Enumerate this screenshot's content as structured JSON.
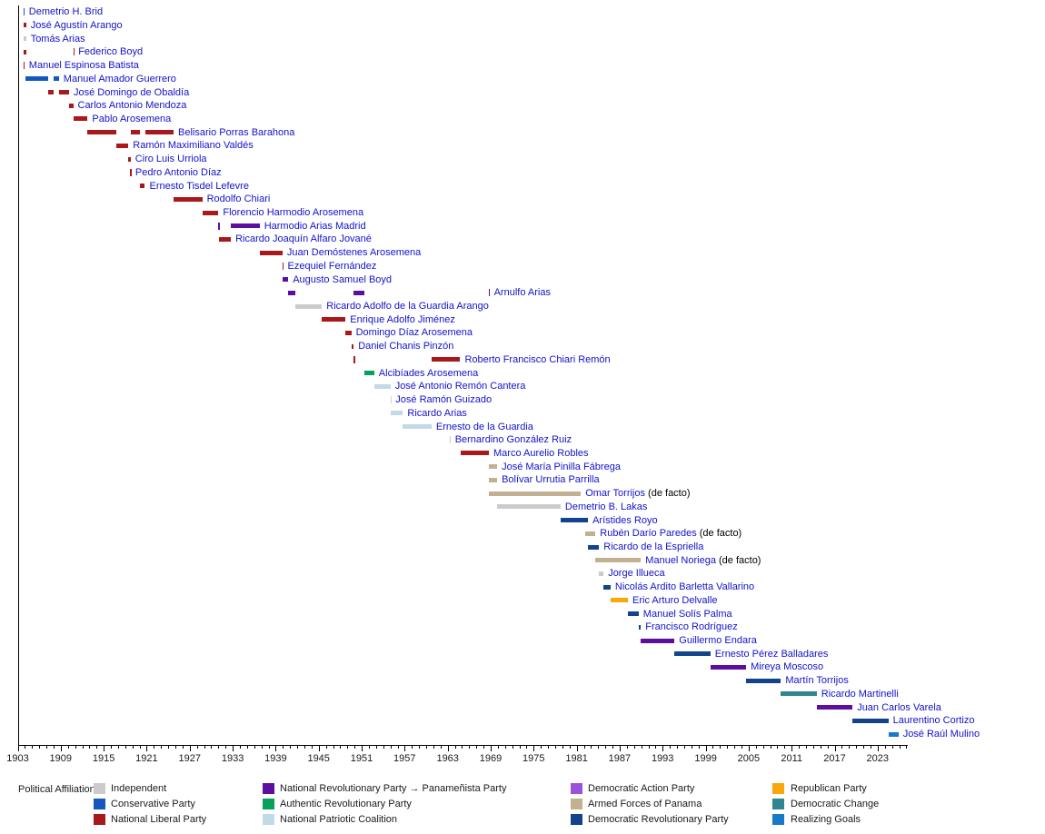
{
  "colors": {
    "independent": "#CBCBCB",
    "conservative": "#1458BE",
    "national_liberal": "#A8191C",
    "pnr_panamenista": "#5D0E9E",
    "authentic_revolutionary": "#05A15D",
    "national_patriotic": "#C2D9E6",
    "democratic_action": "#9C51DB",
    "armed_forces": "#C3B092",
    "prd": "#11448C",
    "republican": "#F9A70B",
    "democratic_change": "#31858F",
    "realizing_goals": "#1879C8"
  },
  "styles": {
    "label_color": "#1212CC",
    "de_facto_color": "#000000",
    "axis_color": "#000000",
    "tick_label_color": "#1a1a1a"
  },
  "chart_data": {
    "type": "bar",
    "subtype": "gantt_timeline",
    "title": "",
    "xlabel": "",
    "ylabel": "",
    "x_axis": {
      "min": 1903,
      "max": 2027,
      "minor_tick_step": 1,
      "major_tick_step": 6,
      "tick_labels": [
        1903,
        1909,
        1915,
        1921,
        1927,
        1933,
        1939,
        1945,
        1951,
        1957,
        1963,
        1969,
        1975,
        1981,
        1987,
        1993,
        1999,
        2005,
        2011,
        2017,
        2023
      ]
    },
    "legend": {
      "title": "Political Affiliation:",
      "columns": [
        [
          {
            "label": "Independent",
            "party": "independent"
          },
          {
            "label": "Conservative Party",
            "party": "conservative"
          },
          {
            "label": "National Liberal Party",
            "party": "national_liberal"
          }
        ],
        [
          {
            "label": "National Revolutionary Party → Panameñista Party",
            "party": "pnr_panamenista"
          },
          {
            "label": "Authentic Revolutionary Party",
            "party": "authentic_revolutionary"
          },
          {
            "label": "National Patriotic Coalition",
            "party": "national_patriotic"
          }
        ],
        [
          {
            "label": "Democratic Action Party",
            "party": "democratic_action"
          },
          {
            "label": "Armed Forces of Panama",
            "party": "armed_forces"
          },
          {
            "label": "Democratic Revolutionary Party",
            "party": "prd"
          }
        ],
        [
          {
            "label": "Republican Party",
            "party": "republican"
          },
          {
            "label": "Democratic Change",
            "party": "democratic_change"
          },
          {
            "label": "Realizing Goals",
            "party": "realizing_goals"
          }
        ]
      ]
    },
    "presidents": [
      {
        "name": "Demetrio H. Brid",
        "party": "conservative",
        "segments": [
          [
            1903.84,
            1903.92
          ]
        ]
      },
      {
        "name": "José Agustín Arango",
        "party": "national_liberal",
        "segments": [
          [
            1903.84,
            1904.17
          ]
        ]
      },
      {
        "name": "Tomás Arias",
        "party": "independent",
        "segments": [
          [
            1903.84,
            1904.17
          ]
        ]
      },
      {
        "name": "Federico Boyd",
        "party": "national_liberal",
        "segments": [
          [
            1903.84,
            1904.17
          ],
          [
            1910.74,
            1910.82
          ]
        ]
      },
      {
        "name": "Manuel Espinosa Batista",
        "party": "national_liberal",
        "segments": [
          [
            1903.84,
            1903.92
          ]
        ]
      },
      {
        "name": "Manuel Amador Guerrero",
        "party": "conservative",
        "segments": [
          [
            1904.13,
            1907.3
          ],
          [
            1908.0,
            1908.75
          ]
        ]
      },
      {
        "name": "José Domingo de Obaldía",
        "party": "national_liberal",
        "segments": [
          [
            1907.3,
            1908.0
          ],
          [
            1908.75,
            1910.17
          ]
        ]
      },
      {
        "name": "Carlos Antonio Mendoza",
        "party": "national_liberal",
        "segments": [
          [
            1910.17,
            1910.74
          ]
        ]
      },
      {
        "name": "Pablo Arosemena",
        "party": "national_liberal",
        "segments": [
          [
            1910.82,
            1912.75
          ]
        ]
      },
      {
        "name": "Belisario Porras Barahona",
        "party": "national_liberal",
        "segments": [
          [
            1912.75,
            1916.75
          ],
          [
            1918.75,
            1920.1
          ],
          [
            1920.75,
            1924.75
          ]
        ]
      },
      {
        "name": "Ramón Maximiliano Valdés",
        "party": "national_liberal",
        "segments": [
          [
            1916.75,
            1918.44
          ]
        ]
      },
      {
        "name": "Ciro Luis Urriola",
        "party": "national_liberal",
        "segments": [
          [
            1918.44,
            1918.75
          ]
        ]
      },
      {
        "name": "Pedro Antonio Díaz",
        "party": "national_liberal",
        "segments": [
          [
            1918.7,
            1918.78
          ]
        ]
      },
      {
        "name": "Ernesto Tisdel Lefevre",
        "party": "national_liberal",
        "segments": [
          [
            1920.1,
            1920.75
          ]
        ]
      },
      {
        "name": "Rodolfo Chiari",
        "party": "national_liberal",
        "segments": [
          [
            1924.75,
            1928.75
          ]
        ]
      },
      {
        "name": "Florencio Harmodio Arosemena",
        "party": "national_liberal",
        "segments": [
          [
            1928.75,
            1931.01
          ]
        ]
      },
      {
        "name": "Harmodio Arias Madrid",
        "party": "pnr_panamenista",
        "segments": [
          [
            1931.0,
            1931.08
          ],
          [
            1932.75,
            1936.75
          ]
        ]
      },
      {
        "name": "Ricardo Joaquín Alfaro Jované",
        "party": "national_liberal",
        "segments": [
          [
            1931.08,
            1932.75
          ]
        ]
      },
      {
        "name": "Juan Demóstenes Arosemena",
        "party": "national_liberal",
        "segments": [
          [
            1936.75,
            1939.95
          ]
        ]
      },
      {
        "name": "Ezequiel Fernández",
        "party": "national_liberal",
        "segments": [
          [
            1939.95,
            1940.03
          ]
        ]
      },
      {
        "name": "Augusto Samuel Boyd",
        "party": "pnr_panamenista",
        "segments": [
          [
            1939.95,
            1940.75
          ]
        ]
      },
      {
        "name": "Arnulfo Arias",
        "party": "pnr_panamenista",
        "segments": [
          [
            1940.75,
            1941.75
          ],
          [
            1949.9,
            1951.4
          ],
          [
            1968.75,
            1968.83
          ]
        ]
      },
      {
        "name": "Ricardo Adolfo de la Guardia Arango",
        "party": "independent",
        "segments": [
          [
            1941.75,
            1945.45
          ]
        ]
      },
      {
        "name": "Enrique Adolfo Jiménez",
        "party": "national_liberal",
        "segments": [
          [
            1945.45,
            1948.75
          ]
        ]
      },
      {
        "name": "Domingo Díaz Arosemena",
        "party": "national_liberal",
        "segments": [
          [
            1948.75,
            1949.55
          ]
        ]
      },
      {
        "name": "Daniel Chanis Pinzón",
        "party": "national_liberal",
        "segments": [
          [
            1949.55,
            1949.88
          ]
        ]
      },
      {
        "name": "Roberto Francisco Chiari Remón",
        "party": "national_liberal",
        "segments": [
          [
            1949.88,
            1949.96
          ],
          [
            1960.75,
            1964.75
          ]
        ]
      },
      {
        "name": "Alcibíades Arosemena",
        "party": "authentic_revolutionary",
        "segments": [
          [
            1951.4,
            1952.75
          ]
        ]
      },
      {
        "name": "José Antonio Remón Cantera",
        "party": "national_patriotic",
        "segments": [
          [
            1952.75,
            1955.01
          ]
        ]
      },
      {
        "name": "José Ramón Guizado",
        "party": "national_patriotic",
        "segments": [
          [
            1955.01,
            1955.09
          ]
        ]
      },
      {
        "name": "Ricardo Arias",
        "party": "national_patriotic",
        "segments": [
          [
            1955.09,
            1956.75
          ]
        ]
      },
      {
        "name": "Ernesto de la Guardia",
        "party": "national_patriotic",
        "segments": [
          [
            1956.75,
            1960.75
          ]
        ]
      },
      {
        "name": "Bernardino González Ruiz",
        "party": "independent",
        "segments": [
          [
            1963.3,
            1963.38
          ]
        ]
      },
      {
        "name": "Marco Aurelio Robles",
        "party": "national_liberal",
        "segments": [
          [
            1964.75,
            1968.75
          ]
        ]
      },
      {
        "name": "José María Pinilla Fábrega",
        "party": "armed_forces",
        "segments": [
          [
            1968.75,
            1969.9
          ]
        ]
      },
      {
        "name": "Bolívar Urrutia Parrilla",
        "party": "armed_forces",
        "segments": [
          [
            1968.75,
            1969.9
          ]
        ]
      },
      {
        "name": "Omar Torrijos",
        "party": "armed_forces",
        "segments": [
          [
            1968.8,
            1981.58
          ]
        ],
        "de_facto": true
      },
      {
        "name": "Demetrio B. Lakas",
        "party": "independent",
        "segments": [
          [
            1969.9,
            1978.75
          ]
        ]
      },
      {
        "name": "Arístides Royo",
        "party": "prd",
        "segments": [
          [
            1978.75,
            1982.58
          ]
        ]
      },
      {
        "name": "Rubén Darío Paredes",
        "party": "armed_forces",
        "segments": [
          [
            1982.17,
            1983.63
          ]
        ],
        "de_facto": true
      },
      {
        "name": "Ricardo de la Espriella",
        "party": "prd",
        "segments": [
          [
            1982.58,
            1984.13
          ]
        ]
      },
      {
        "name": "Manuel Noriega",
        "party": "armed_forces",
        "segments": [
          [
            1983.63,
            1989.97
          ]
        ],
        "de_facto": true
      },
      {
        "name": "Jorge Illueca",
        "party": "independent",
        "segments": [
          [
            1984.13,
            1984.75
          ]
        ]
      },
      {
        "name": "Nicolás Ardito Barletta Vallarino",
        "party": "prd",
        "segments": [
          [
            1984.75,
            1985.73
          ]
        ]
      },
      {
        "name": "Eric Arturo Delvalle",
        "party": "republican",
        "segments": [
          [
            1985.73,
            1988.15
          ]
        ]
      },
      {
        "name": "Manuel Solís Palma",
        "party": "prd",
        "segments": [
          [
            1988.15,
            1989.65
          ]
        ]
      },
      {
        "name": "Francisco Rodríguez",
        "party": "prd",
        "segments": [
          [
            1989.65,
            1989.97
          ]
        ]
      },
      {
        "name": "Guillermo Endara",
        "party": "pnr_panamenista",
        "segments": [
          [
            1989.97,
            1994.65
          ]
        ]
      },
      {
        "name": "Ernesto Pérez Balladares",
        "party": "prd",
        "segments": [
          [
            1994.65,
            1999.65
          ]
        ]
      },
      {
        "name": "Mireya Moscoso",
        "party": "pnr_panamenista",
        "segments": [
          [
            1999.65,
            2004.65
          ]
        ]
      },
      {
        "name": "Martín Torrijos",
        "party": "prd",
        "segments": [
          [
            2004.65,
            2009.5
          ]
        ]
      },
      {
        "name": "Ricardo Martinelli",
        "party": "democratic_change",
        "segments": [
          [
            2009.5,
            2014.5
          ]
        ]
      },
      {
        "name": "Juan Carlos Varela",
        "party": "pnr_panamenista",
        "segments": [
          [
            2014.5,
            2019.5
          ]
        ]
      },
      {
        "name": "Laurentino Cortizo",
        "party": "prd",
        "segments": [
          [
            2019.5,
            2024.5
          ]
        ]
      },
      {
        "name": "José Raúl Mulino",
        "party": "realizing_goals",
        "segments": [
          [
            2024.5,
            2025.9
          ]
        ]
      }
    ],
    "de_facto_suffix": " (de facto)"
  }
}
